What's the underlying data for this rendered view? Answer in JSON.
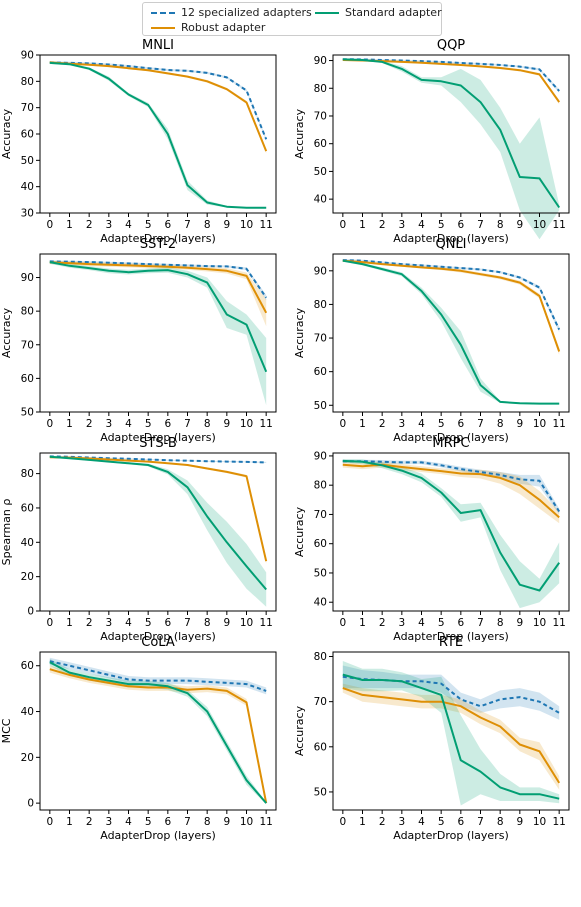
{
  "legend": {
    "specialized": "12 specialized adapters",
    "robust": "Robust adapter",
    "standard": "Standard adapter"
  },
  "colors": {
    "specialized": "#1f77b4",
    "robust": "#de8f05",
    "standard": "#029e73",
    "band_specialized": "#1f77b4",
    "band_robust": "#de8f05",
    "band_standard": "#029e73"
  },
  "chart_data": [
    {
      "type": "line",
      "title": "MNLI",
      "xlabel": "AdapterDrop (layers)",
      "ylabel": "Accuracy",
      "x": [
        0,
        1,
        2,
        3,
        4,
        5,
        6,
        7,
        8,
        9,
        10,
        11
      ],
      "ylim": [
        30,
        90
      ],
      "yticks": [
        30,
        40,
        50,
        60,
        70,
        80,
        90
      ],
      "series": [
        {
          "name": "12 specialized adapters",
          "values": [
            87.2,
            87.0,
            86.8,
            86.4,
            85.8,
            85.0,
            84.3,
            84.0,
            83.2,
            81.5,
            76.5,
            58.0
          ],
          "band": [
            0.4,
            0.4,
            0.4,
            0.4,
            0.4,
            0.4,
            0.4,
            0.4,
            0.4,
            0.4,
            0.5,
            0.6
          ]
        },
        {
          "name": "Robust adapter",
          "values": [
            87.2,
            86.7,
            86.3,
            85.8,
            85.0,
            84.2,
            83.0,
            81.8,
            80.0,
            77.0,
            72.0,
            53.5
          ],
          "band": [
            0.4,
            0.4,
            0.4,
            0.4,
            0.4,
            0.4,
            0.4,
            0.4,
            0.5,
            0.5,
            0.6,
            0.8
          ]
        },
        {
          "name": "Standard adapter",
          "values": [
            87.0,
            86.5,
            84.8,
            81.0,
            75.0,
            71.0,
            60.0,
            40.5,
            34.0,
            32.4,
            32.0,
            32.0
          ],
          "band": [
            0.4,
            0.4,
            0.5,
            0.8,
            0.6,
            0.8,
            2.0,
            1.8,
            0.8,
            0.3,
            0.2,
            0.2
          ]
        }
      ]
    },
    {
      "type": "line",
      "title": "QQP",
      "xlabel": "AdapterDrop (layers)",
      "ylabel": "Accuracy",
      "x": [
        0,
        1,
        2,
        3,
        4,
        5,
        6,
        7,
        8,
        9,
        10,
        11
      ],
      "ylim": [
        35,
        92
      ],
      "yticks": [
        40,
        50,
        60,
        70,
        80,
        90
      ],
      "series": [
        {
          "name": "12 specialized adapters",
          "values": [
            90.5,
            90.4,
            90.2,
            90.0,
            89.8,
            89.5,
            89.1,
            88.8,
            88.4,
            87.8,
            86.8,
            79.0
          ],
          "band": [
            0.3,
            0.3,
            0.3,
            0.3,
            0.3,
            0.3,
            0.3,
            0.3,
            0.3,
            0.3,
            0.4,
            0.6
          ]
        },
        {
          "name": "Robust adapter",
          "values": [
            90.2,
            90.0,
            89.8,
            89.5,
            89.2,
            88.8,
            88.4,
            87.9,
            87.3,
            86.5,
            85.0,
            75.0
          ],
          "band": [
            0.3,
            0.3,
            0.3,
            0.3,
            0.3,
            0.3,
            0.3,
            0.3,
            0.4,
            0.4,
            0.5,
            0.8
          ]
        },
        {
          "name": "Standard adapter",
          "values": [
            90.4,
            90.2,
            89.5,
            87.0,
            83.0,
            82.5,
            81.0,
            75.0,
            65.0,
            48.0,
            47.5,
            37.0
          ],
          "band": [
            0.3,
            0.3,
            0.4,
            1.0,
            1.0,
            1.5,
            6.0,
            8.0,
            8.0,
            12.0,
            22.0,
            1.0
          ]
        }
      ]
    },
    {
      "type": "line",
      "title": "SST-2",
      "xlabel": "AdapterDrop (layers)",
      "ylabel": "Accuracy",
      "x": [
        0,
        1,
        2,
        3,
        4,
        5,
        6,
        7,
        8,
        9,
        10,
        11
      ],
      "ylim": [
        50,
        97
      ],
      "yticks": [
        50,
        60,
        70,
        80,
        90
      ],
      "series": [
        {
          "name": "12 specialized adapters",
          "values": [
            94.8,
            94.7,
            94.6,
            94.4,
            94.2,
            94.0,
            93.8,
            93.6,
            93.4,
            93.3,
            92.6,
            84.0
          ],
          "band": [
            0.3,
            0.3,
            0.3,
            0.3,
            0.3,
            0.3,
            0.3,
            0.3,
            0.3,
            0.3,
            0.4,
            0.8
          ]
        },
        {
          "name": "Robust adapter",
          "values": [
            94.5,
            94.3,
            94.0,
            93.8,
            93.6,
            93.4,
            93.2,
            92.9,
            92.5,
            92.0,
            90.5,
            79.5
          ],
          "band": [
            0.5,
            0.5,
            0.6,
            0.6,
            0.6,
            0.6,
            0.6,
            0.6,
            0.7,
            0.8,
            1.0,
            4.0
          ]
        },
        {
          "name": "Standard adapter",
          "values": [
            94.6,
            93.5,
            92.8,
            92.0,
            91.6,
            92.0,
            92.2,
            91.0,
            88.5,
            79.0,
            76.0,
            62.0
          ],
          "band": [
            0.5,
            0.6,
            0.6,
            0.7,
            0.7,
            0.7,
            0.8,
            1.0,
            1.5,
            4.0,
            3.0,
            10.0
          ]
        }
      ]
    },
    {
      "type": "line",
      "title": "QNLI",
      "xlabel": "AdapterDrop (layers)",
      "ylabel": "Accuracy",
      "x": [
        0,
        1,
        2,
        3,
        4,
        5,
        6,
        7,
        8,
        9,
        10,
        11
      ],
      "ylim": [
        48,
        95
      ],
      "yticks": [
        50,
        60,
        70,
        80,
        90
      ],
      "series": [
        {
          "name": "12 specialized adapters",
          "values": [
            93.2,
            93.0,
            92.5,
            92.0,
            91.6,
            91.2,
            90.8,
            90.4,
            89.6,
            88.0,
            85.0,
            72.5
          ],
          "band": [
            0.3,
            0.3,
            0.3,
            0.3,
            0.3,
            0.3,
            0.3,
            0.3,
            0.3,
            0.4,
            0.5,
            0.8
          ]
        },
        {
          "name": "Robust adapter",
          "values": [
            93.0,
            92.6,
            92.0,
            91.5,
            91.0,
            90.6,
            90.0,
            89.0,
            88.0,
            86.5,
            82.5,
            66.0
          ],
          "band": [
            0.3,
            0.3,
            0.3,
            0.3,
            0.3,
            0.4,
            0.5,
            0.5,
            0.5,
            0.6,
            0.7,
            1.0
          ]
        },
        {
          "name": "Standard adapter",
          "values": [
            93.0,
            92.0,
            90.5,
            89.0,
            84.0,
            77.0,
            68.0,
            56.0,
            51.0,
            50.6,
            50.5,
            50.5
          ],
          "band": [
            0.3,
            0.4,
            0.5,
            0.6,
            1.0,
            2.0,
            4.0,
            2.0,
            0.3,
            0.2,
            0.2,
            0.2
          ]
        }
      ]
    },
    {
      "type": "line",
      "title": "STS-B",
      "xlabel": "AdapterDrop (layers)",
      "ylabel": "Spearman ρ",
      "x": [
        0,
        1,
        2,
        3,
        4,
        5,
        6,
        7,
        8,
        9,
        10,
        11
      ],
      "ylim": [
        0,
        92
      ],
      "yticks": [
        0,
        20,
        40,
        60,
        80
      ],
      "series": [
        {
          "name": "12 specialized adapters",
          "values": [
            90.0,
            89.8,
            89.4,
            89.0,
            88.6,
            88.2,
            87.8,
            87.5,
            87.2,
            87.0,
            86.8,
            86.5
          ],
          "band": [
            0.3,
            0.3,
            0.3,
            0.3,
            0.3,
            0.3,
            0.3,
            0.3,
            0.3,
            0.3,
            0.3,
            0.3
          ]
        },
        {
          "name": "Robust adapter",
          "values": [
            89.5,
            89.3,
            88.8,
            88.2,
            87.6,
            87.0,
            86.0,
            85.0,
            83.0,
            81.0,
            78.5,
            29.0
          ],
          "band": [
            0.3,
            0.3,
            0.3,
            0.3,
            0.3,
            0.3,
            0.4,
            0.5,
            0.6,
            0.7,
            0.8,
            1.5
          ]
        },
        {
          "name": "Standard adapter",
          "values": [
            89.8,
            89.0,
            88.0,
            87.0,
            86.0,
            85.0,
            81.0,
            72.0,
            55.0,
            40.0,
            26.0,
            12.5
          ],
          "band": [
            0.3,
            0.4,
            0.5,
            0.5,
            0.6,
            0.8,
            1.5,
            4.0,
            8.0,
            12.0,
            13.0,
            10.0
          ]
        }
      ]
    },
    {
      "type": "line",
      "title": "MRPC",
      "xlabel": "AdapterDrop (layers)",
      "ylabel": "Accuracy",
      "x": [
        0,
        1,
        2,
        3,
        4,
        5,
        6,
        7,
        8,
        9,
        10,
        11
      ],
      "ylim": [
        37,
        91
      ],
      "yticks": [
        40,
        50,
        60,
        70,
        80,
        90
      ],
      "series": [
        {
          "name": "12 specialized adapters",
          "values": [
            88.2,
            88.2,
            88.0,
            87.8,
            87.8,
            86.8,
            85.5,
            84.5,
            83.5,
            82.0,
            81.5,
            71.0
          ],
          "band": [
            0.5,
            0.5,
            0.6,
            0.6,
            0.6,
            0.7,
            0.8,
            0.8,
            1.0,
            1.5,
            2.0,
            1.0
          ]
        },
        {
          "name": "Robust adapter",
          "values": [
            87.0,
            86.5,
            87.0,
            86.2,
            85.5,
            84.8,
            84.0,
            83.8,
            82.5,
            80.0,
            75.0,
            69.0
          ],
          "band": [
            1.0,
            1.0,
            1.0,
            1.0,
            1.0,
            1.0,
            1.2,
            1.5,
            2.0,
            3.0,
            3.0,
            2.0
          ]
        },
        {
          "name": "Standard adapter",
          "values": [
            88.3,
            88.0,
            86.8,
            85.0,
            82.5,
            77.5,
            70.5,
            71.5,
            57.0,
            46.0,
            44.0,
            53.5
          ],
          "band": [
            0.6,
            0.8,
            1.0,
            1.2,
            1.5,
            1.5,
            3.0,
            2.5,
            6.0,
            8.0,
            4.0,
            7.0
          ]
        }
      ]
    },
    {
      "type": "line",
      "title": "CoLA",
      "xlabel": "AdapterDrop (layers)",
      "ylabel": "MCC",
      "x": [
        0,
        1,
        2,
        3,
        4,
        5,
        6,
        7,
        8,
        9,
        10,
        11
      ],
      "ylim": [
        -3,
        66
      ],
      "yticks": [
        0,
        20,
        40,
        60
      ],
      "series": [
        {
          "name": "12 specialized adapters",
          "values": [
            62.0,
            60.0,
            58.0,
            56.0,
            54.0,
            53.5,
            53.5,
            53.5,
            53.0,
            52.5,
            52.0,
            49.0
          ],
          "band": [
            1.5,
            1.5,
            1.5,
            1.5,
            1.5,
            1.5,
            1.5,
            1.5,
            1.5,
            1.5,
            1.5,
            1.5
          ]
        },
        {
          "name": "Robust adapter",
          "values": [
            58.5,
            56.0,
            54.0,
            52.5,
            51.0,
            50.5,
            50.5,
            49.5,
            50.0,
            49.0,
            44.0,
            0.0
          ],
          "band": [
            1.5,
            1.5,
            1.5,
            1.5,
            1.5,
            1.5,
            1.5,
            1.5,
            1.5,
            1.5,
            1.5,
            0.5
          ]
        },
        {
          "name": "Standard adapter",
          "values": [
            61.5,
            57.0,
            55.0,
            53.5,
            52.0,
            52.0,
            51.0,
            48.0,
            40.0,
            25.0,
            10.0,
            0.0
          ],
          "band": [
            1.5,
            1.5,
            1.5,
            1.5,
            1.5,
            1.5,
            1.5,
            1.5,
            2.0,
            2.0,
            2.0,
            0.5
          ]
        }
      ]
    },
    {
      "type": "line",
      "title": "RTE",
      "xlabel": "AdapterDrop (layers)",
      "ylabel": "Accuracy",
      "x": [
        0,
        1,
        2,
        3,
        4,
        5,
        6,
        7,
        8,
        9,
        10,
        11
      ],
      "ylim": [
        46,
        81
      ],
      "yticks": [
        50,
        60,
        70,
        80
      ],
      "series": [
        {
          "name": "12 specialized adapters",
          "values": [
            75.5,
            75.0,
            74.8,
            74.5,
            74.5,
            74.0,
            70.5,
            69.0,
            70.5,
            71.0,
            70.0,
            67.5
          ],
          "band": [
            2.5,
            2.0,
            1.8,
            1.5,
            1.5,
            2.0,
            1.5,
            1.5,
            2.0,
            2.0,
            2.0,
            1.5
          ]
        },
        {
          "name": "Robust adapter",
          "values": [
            73.0,
            71.5,
            71.0,
            70.5,
            70.0,
            70.0,
            69.0,
            66.5,
            64.5,
            60.5,
            59.0,
            52.0
          ],
          "band": [
            1.0,
            1.5,
            1.5,
            1.5,
            1.5,
            1.5,
            1.5,
            1.5,
            1.5,
            1.5,
            2.0,
            1.5
          ]
        },
        {
          "name": "Standard adapter",
          "values": [
            76.0,
            74.8,
            74.8,
            74.5,
            73.0,
            71.5,
            57.0,
            54.5,
            51.0,
            49.5,
            49.5,
            48.5
          ],
          "band": [
            3.0,
            2.5,
            2.5,
            2.0,
            2.0,
            4.0,
            10.0,
            5.0,
            3.0,
            1.5,
            1.5,
            1.0
          ]
        }
      ]
    }
  ]
}
